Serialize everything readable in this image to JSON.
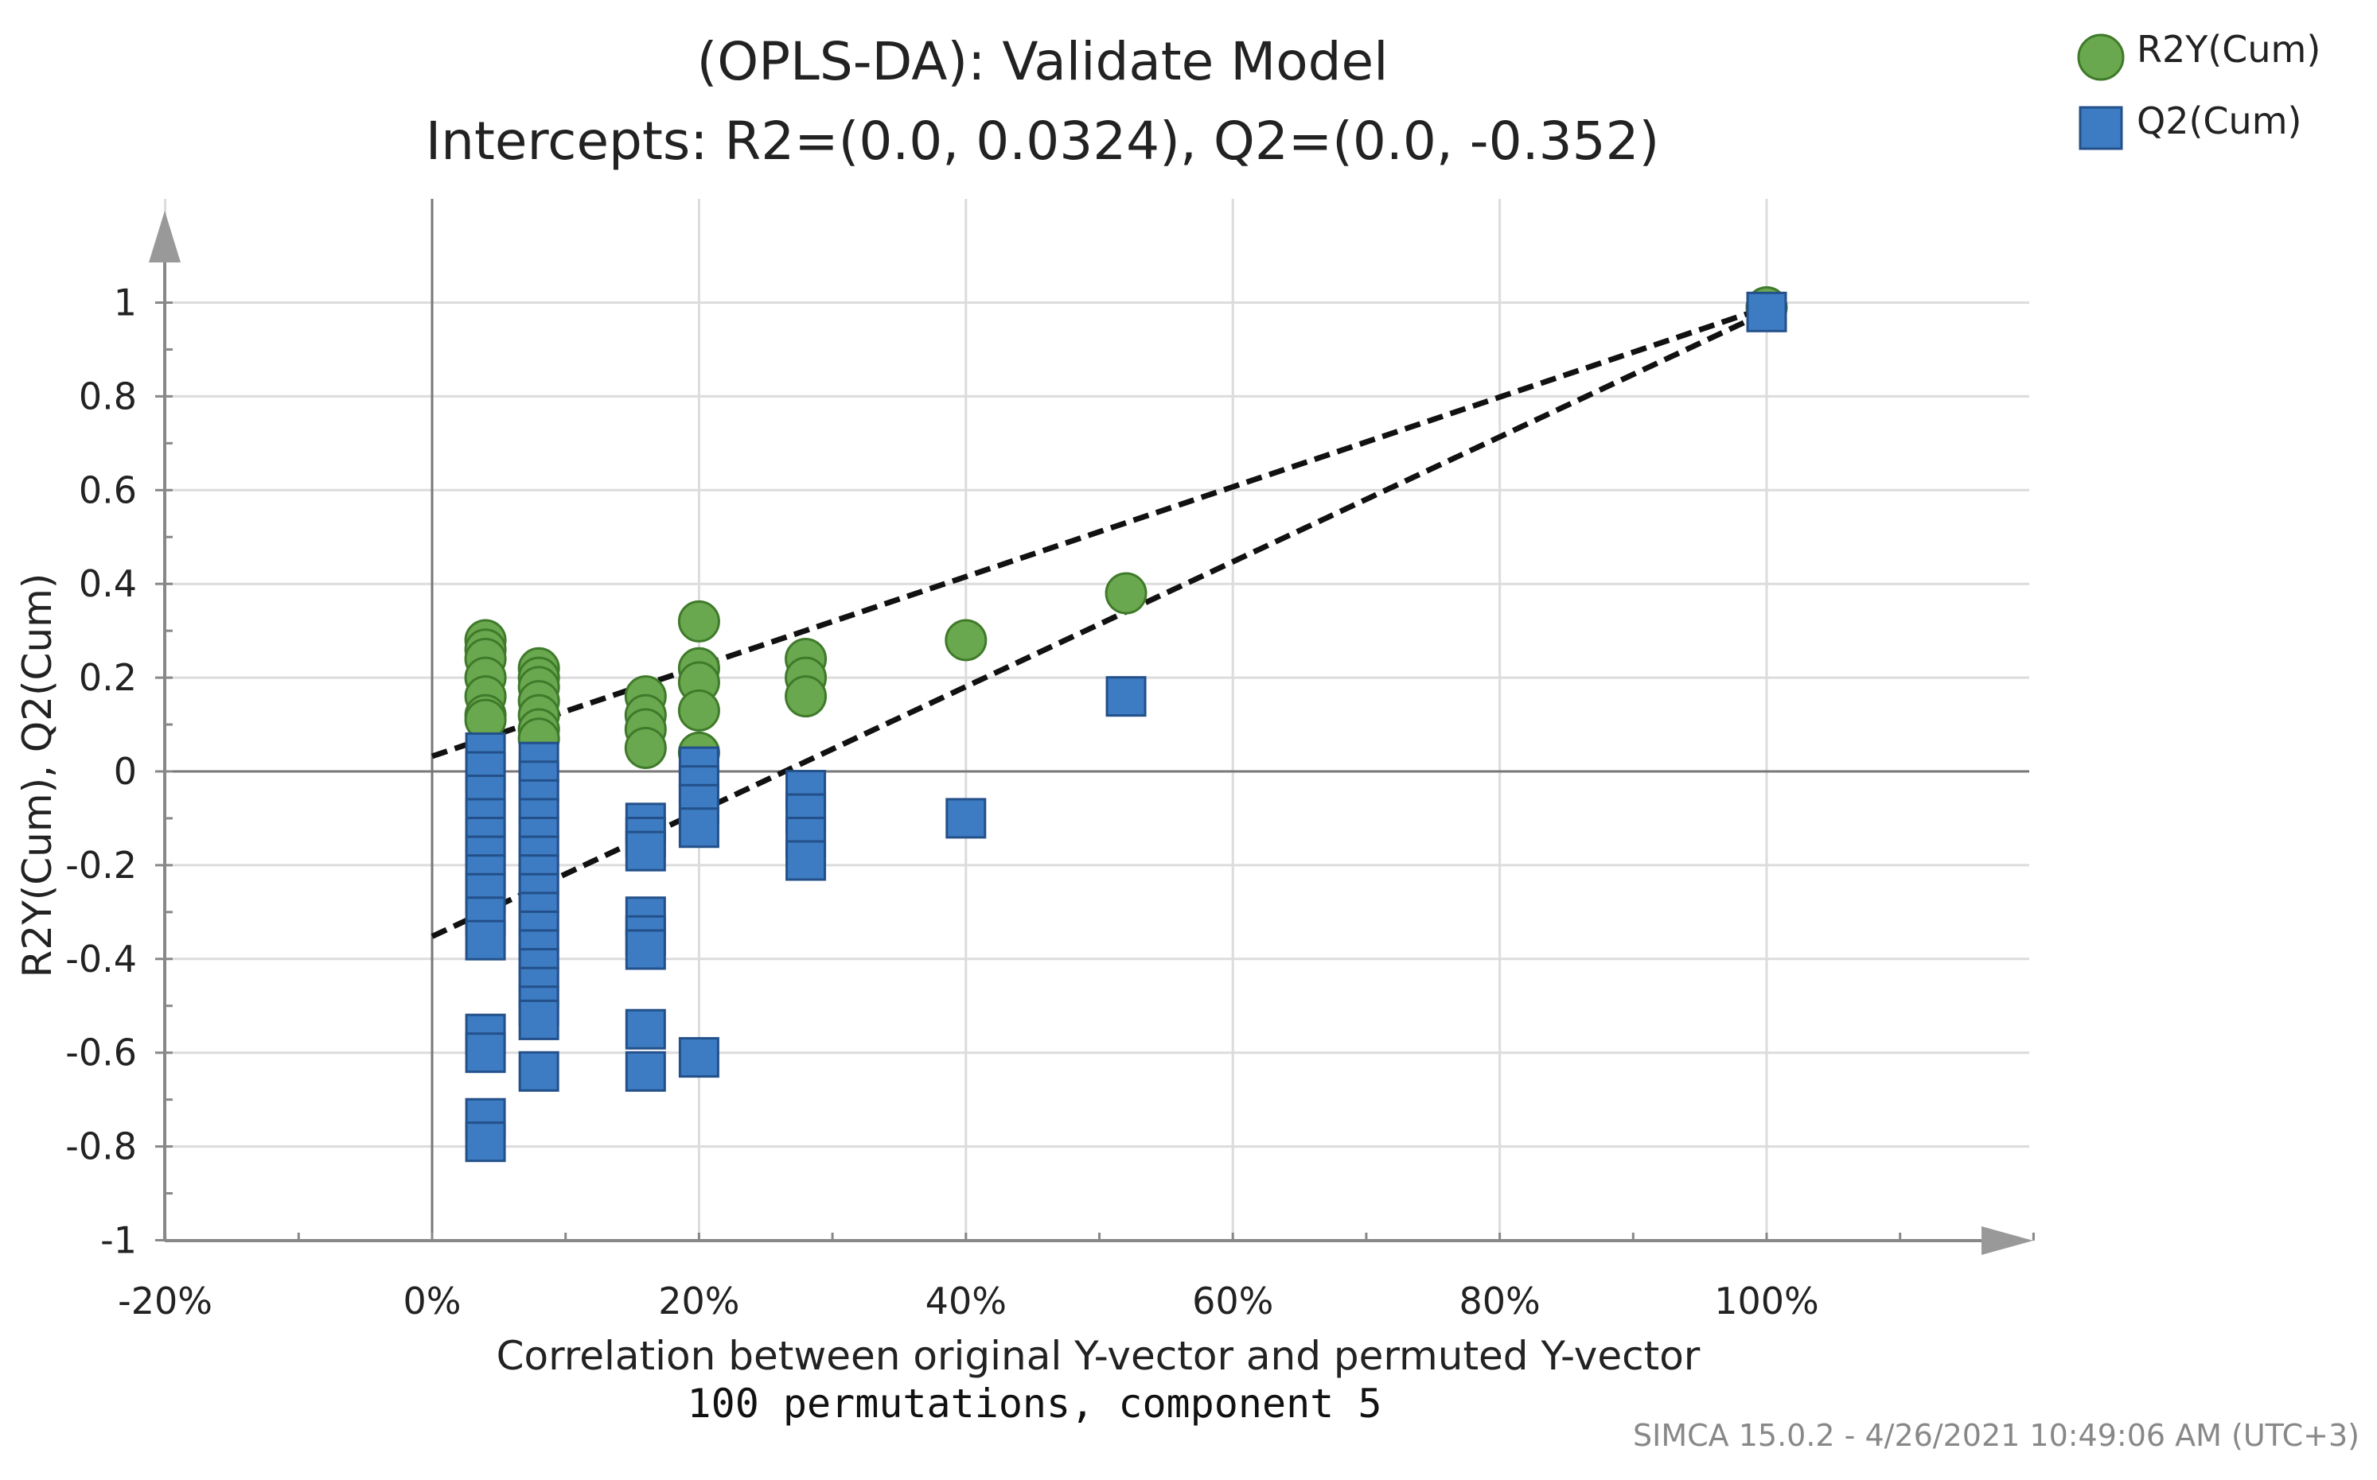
{
  "chart_data": {
    "type": "scatter",
    "title": "(OPLS-DA): Validate Model",
    "subtitle": "Intercepts: R2=(0.0, 0.0324), Q2=(0.0, -0.352)",
    "xlabel": "Correlation between original Y-vector and permuted Y-vector",
    "xlabel2": "100 permutations, component 5",
    "ylabel": "R2Y(Cum), Q2(Cum)",
    "footer": "SIMCA 15.0.2 - 4/26/2021 10:49:06 AM (UTC+3)",
    "xlim": [
      -0.2,
      1.2
    ],
    "ylim": [
      -1,
      1.2
    ],
    "xticks": [
      -0.2,
      0,
      0.2,
      0.4,
      0.6,
      0.8,
      1.0
    ],
    "xtick_labels": [
      "-20%",
      "0%",
      "20%",
      "40%",
      "60%",
      "80%",
      "100%"
    ],
    "yticks": [
      -1,
      -0.8,
      -0.6,
      -0.4,
      -0.2,
      0,
      0.2,
      0.4,
      0.6,
      0.8,
      1
    ],
    "ytick_labels": [
      "-1",
      "-0.8",
      "-0.6",
      "-0.4",
      "-0.2",
      "0",
      "0.2",
      "0.4",
      "0.6",
      "0.8",
      "1"
    ],
    "grid": true,
    "legend_position": "top-right",
    "series": [
      {
        "name": "R2Y(Cum)",
        "marker": "circle",
        "color": "#6aa84f",
        "edge": "#3f7a2a",
        "points": [
          [
            0.04,
            0.28
          ],
          [
            0.04,
            0.26
          ],
          [
            0.04,
            0.24
          ],
          [
            0.04,
            0.2
          ],
          [
            0.04,
            0.16
          ],
          [
            0.04,
            0.12
          ],
          [
            0.04,
            0.11
          ],
          [
            0.08,
            0.22
          ],
          [
            0.08,
            0.2
          ],
          [
            0.08,
            0.18
          ],
          [
            0.08,
            0.15
          ],
          [
            0.08,
            0.12
          ],
          [
            0.08,
            0.09
          ],
          [
            0.08,
            0.07
          ],
          [
            0.16,
            0.16
          ],
          [
            0.16,
            0.12
          ],
          [
            0.16,
            0.09
          ],
          [
            0.16,
            0.05
          ],
          [
            0.2,
            0.32
          ],
          [
            0.2,
            0.22
          ],
          [
            0.2,
            0.19
          ],
          [
            0.2,
            0.13
          ],
          [
            0.2,
            0.04
          ],
          [
            0.28,
            0.24
          ],
          [
            0.28,
            0.2
          ],
          [
            0.28,
            0.16
          ],
          [
            0.4,
            0.28
          ],
          [
            0.52,
            0.38
          ],
          [
            1.0,
            0.99
          ]
        ]
      },
      {
        "name": "Q2(Cum)",
        "marker": "square",
        "color": "#3d7cc2",
        "edge": "#23508a",
        "points": [
          [
            0.04,
            0.04
          ],
          [
            0.04,
            0.0
          ],
          [
            0.04,
            -0.05
          ],
          [
            0.04,
            -0.1
          ],
          [
            0.04,
            -0.14
          ],
          [
            0.04,
            -0.18
          ],
          [
            0.04,
            -0.22
          ],
          [
            0.04,
            -0.26
          ],
          [
            0.04,
            -0.31
          ],
          [
            0.04,
            -0.36
          ],
          [
            0.04,
            -0.56
          ],
          [
            0.04,
            -0.6
          ],
          [
            0.04,
            -0.74
          ],
          [
            0.04,
            -0.79
          ],
          [
            0.08,
            0.02
          ],
          [
            0.08,
            -0.02
          ],
          [
            0.08,
            -0.06
          ],
          [
            0.08,
            -0.1
          ],
          [
            0.08,
            -0.14
          ],
          [
            0.08,
            -0.18
          ],
          [
            0.08,
            -0.22
          ],
          [
            0.08,
            -0.26
          ],
          [
            0.08,
            -0.3
          ],
          [
            0.08,
            -0.34
          ],
          [
            0.08,
            -0.38
          ],
          [
            0.08,
            -0.42
          ],
          [
            0.08,
            -0.46
          ],
          [
            0.08,
            -0.5
          ],
          [
            0.08,
            -0.53
          ],
          [
            0.08,
            -0.64
          ],
          [
            0.16,
            -0.11
          ],
          [
            0.16,
            -0.14
          ],
          [
            0.16,
            -0.17
          ],
          [
            0.16,
            -0.31
          ],
          [
            0.16,
            -0.35
          ],
          [
            0.16,
            -0.38
          ],
          [
            0.16,
            -0.55
          ],
          [
            0.16,
            -0.64
          ],
          [
            0.2,
            0.01
          ],
          [
            0.2,
            -0.03
          ],
          [
            0.2,
            -0.07
          ],
          [
            0.2,
            -0.12
          ],
          [
            0.2,
            -0.61
          ],
          [
            0.28,
            -0.04
          ],
          [
            0.28,
            -0.09
          ],
          [
            0.28,
            -0.14
          ],
          [
            0.28,
            -0.19
          ],
          [
            0.4,
            -0.1
          ],
          [
            0.52,
            0.16
          ],
          [
            1.0,
            0.98
          ]
        ]
      }
    ],
    "regression_lines": [
      {
        "name": "R2 intercept line",
        "from": [
          0.0,
          0.0324
        ],
        "to": [
          1.0,
          0.99
        ]
      },
      {
        "name": "Q2 intercept line",
        "from": [
          0.0,
          -0.352
        ],
        "to": [
          1.0,
          0.98
        ]
      }
    ]
  }
}
